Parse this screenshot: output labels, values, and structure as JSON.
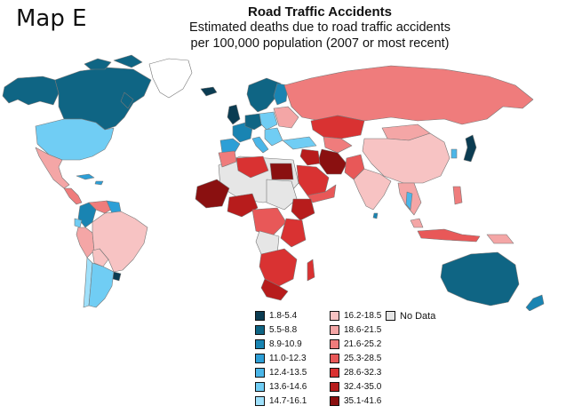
{
  "map_label": "Map E",
  "title": "Road Traffic Accidents",
  "subtitle_line1": "Estimated deaths due to road traffic accidents",
  "subtitle_line2": "per 100,000 population (2007 or most recent)",
  "colors": {
    "ocean": "#ffffff",
    "no_data": "#e6e6e6",
    "border": "#777777"
  },
  "legend": {
    "no_data_label": "No Data",
    "bins": [
      {
        "label": "1.8-5.4",
        "color": "#0b3c52"
      },
      {
        "label": "5.5-8.8",
        "color": "#0f6584"
      },
      {
        "label": "8.9-10.9",
        "color": "#1984b2"
      },
      {
        "label": "11.0-12.3",
        "color": "#2d9fd6"
      },
      {
        "label": "12.4-13.5",
        "color": "#4bb6e8"
      },
      {
        "label": "13.6-14.6",
        "color": "#70cdf4"
      },
      {
        "label": "14.7-16.1",
        "color": "#9fe0fa"
      },
      {
        "label": "16.2-18.5",
        "color": "#f7c3c3"
      },
      {
        "label": "18.6-21.5",
        "color": "#f4a6a6"
      },
      {
        "label": "21.6-25.2",
        "color": "#ef7c7c"
      },
      {
        "label": "25.3-28.5",
        "color": "#e85858"
      },
      {
        "label": "28.6-32.3",
        "color": "#d93232"
      },
      {
        "label": "32.4-35.0",
        "color": "#b71c1c"
      },
      {
        "label": "35.1-41.6",
        "color": "#8a1010"
      }
    ]
  }
}
